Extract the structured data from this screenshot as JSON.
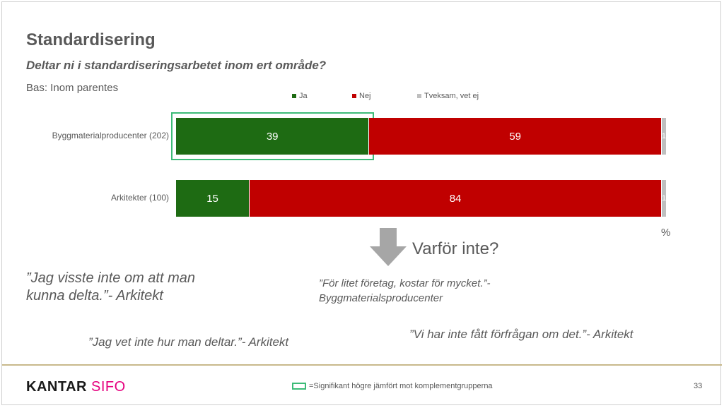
{
  "title": "Standardisering",
  "subtitle": "Deltar ni i standardiseringsarbetet inom ert område?",
  "base": "Bas: Inom parentes",
  "chart_data": {
    "type": "bar",
    "orientation": "horizontal",
    "stacked": true,
    "categories": [
      "Byggmaterialproducenter (202)",
      "Arkitekter (100)"
    ],
    "series": [
      {
        "name": "Ja",
        "color": "#1e6b13",
        "values": [
          39,
          15
        ]
      },
      {
        "name": "Nej",
        "color": "#c00000",
        "values": [
          59,
          84
        ]
      },
      {
        "name": "Tveksam, vet ej",
        "color": "#bfbfbf",
        "values": [
          1,
          1
        ]
      }
    ],
    "unit_label": "%",
    "significant": [
      {
        "category": 0,
        "series": 0
      }
    ],
    "legend": "top"
  },
  "question": "Varför inte?",
  "quotes": {
    "q1": "”Jag visste inte om att man kunna delta.”- Arkitekt",
    "q2": "”För litet företag, kostar för mycket.”- Byggmaterialsproducenter",
    "q3": "”Jag vet inte hur man deltar.”- Arkitekt",
    "q4": "”Vi har inte fått förfrågan om det.”- Arkitekt"
  },
  "footer": {
    "logo_main": "KANTAR",
    "logo_accent": "SIFO",
    "footnote": "=Signifikant högre jämfört mot komplementgrupperna",
    "page_number": "33"
  }
}
